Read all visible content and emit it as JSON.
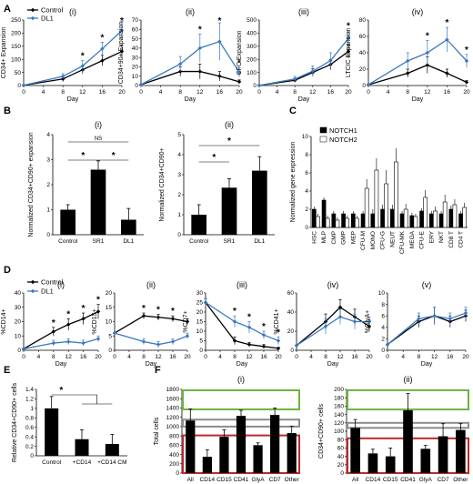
{
  "colors": {
    "control": "#000000",
    "dl1": "#3b78c2",
    "bar_black": "#000000",
    "bar_white": "#ffffff",
    "box_green": "#6db33f",
    "box_gray": "#8c8c8c",
    "box_red": "#c0272d"
  },
  "panels": {
    "A": "A",
    "B": "B",
    "C": "C",
    "D": "D",
    "E": "E",
    "F": "F"
  },
  "legend": {
    "control": "Control",
    "dl1": "DL1",
    "notch1": "NOTCH1",
    "notch2": "NOTCH2"
  },
  "chart_data": [
    {
      "id": "A-i",
      "type": "line",
      "sublabel": "(i)",
      "xlabel": "Day",
      "ylabel": "CD34+ Expansion",
      "x": [
        0,
        8,
        12,
        16,
        20
      ],
      "ylim": [
        0,
        250
      ],
      "yticks": [
        0,
        50,
        100,
        150,
        200,
        250
      ],
      "xticks": [
        0,
        4,
        8,
        12,
        16,
        20
      ],
      "series": [
        {
          "name": "Control",
          "values": [
            1,
            25,
            60,
            95,
            130
          ],
          "err": [
            0,
            10,
            15,
            20,
            25
          ]
        },
        {
          "name": "DL1",
          "values": [
            1,
            35,
            75,
            140,
            210
          ],
          "err": [
            0,
            10,
            20,
            25,
            35
          ]
        }
      ],
      "sig_x": [
        12,
        16,
        20
      ],
      "sig_label": "*"
    },
    {
      "id": "A-ii",
      "type": "line",
      "sublabel": "(ii)",
      "xlabel": "Day",
      "ylabel": "CD34+90+ Expansion",
      "x": [
        0,
        8,
        12,
        16,
        20
      ],
      "ylim": [
        0,
        70
      ],
      "yticks": [
        0,
        10,
        20,
        30,
        40,
        50,
        60,
        70
      ],
      "xticks": [
        0,
        4,
        8,
        12,
        16,
        20
      ],
      "series": [
        {
          "name": "Control",
          "values": [
            1,
            15,
            15,
            10,
            4
          ],
          "err": [
            0,
            5,
            8,
            5,
            2
          ]
        },
        {
          "name": "DL1",
          "values": [
            1,
            23,
            40,
            47,
            14
          ],
          "err": [
            0,
            8,
            15,
            20,
            5
          ]
        }
      ],
      "sig_x": [
        12,
        16,
        20
      ],
      "sig_label": "*"
    },
    {
      "id": "A-iii",
      "type": "line",
      "sublabel": "(iii)",
      "xlabel": "Day",
      "ylabel": "CFC Expansion",
      "x": [
        0,
        8,
        12,
        16,
        20
      ],
      "ylim": [
        0,
        500
      ],
      "yticks": [
        0,
        100,
        200,
        300,
        400,
        500
      ],
      "xticks": [
        0,
        4,
        8,
        12,
        16,
        20
      ],
      "series": [
        {
          "name": "Control",
          "values": [
            1,
            40,
            100,
            160,
            260
          ],
          "err": [
            0,
            15,
            30,
            40,
            50
          ]
        },
        {
          "name": "DL1",
          "values": [
            1,
            50,
            110,
            190,
            360
          ],
          "err": [
            0,
            20,
            40,
            60,
            60
          ]
        }
      ],
      "sig_x": [
        20
      ],
      "sig_label": "*"
    },
    {
      "id": "A-iv",
      "type": "line",
      "sublabel": "(iv)",
      "xlabel": "Day",
      "ylabel": "LTCIC Expansion",
      "x": [
        0,
        8,
        12,
        16,
        20
      ],
      "ylim": [
        0,
        80
      ],
      "yticks": [
        0,
        20,
        40,
        60,
        80
      ],
      "xticks": [
        0,
        4,
        8,
        12,
        16,
        20
      ],
      "series": [
        {
          "name": "Control",
          "values": [
            1,
            15,
            25,
            15,
            4
          ],
          "err": [
            0,
            5,
            10,
            5,
            2
          ]
        },
        {
          "name": "DL1",
          "values": [
            1,
            30,
            40,
            56,
            30
          ],
          "err": [
            0,
            10,
            15,
            15,
            8
          ]
        }
      ],
      "sig_x": [
        12,
        16,
        20
      ],
      "sig_label": "*"
    },
    {
      "id": "B-i",
      "type": "bar",
      "sublabel": "(i)",
      "ylabel": "Normalized CD34+CD90+ expansion",
      "categories": [
        "Control",
        "SR1",
        "DL1"
      ],
      "values": [
        1,
        2.6,
        0.6
      ],
      "err": [
        0.2,
        0.35,
        0.45
      ],
      "ylim": [
        0,
        4
      ],
      "yticks": [
        0,
        1,
        2,
        3,
        4
      ],
      "sig": [
        {
          "from": 0,
          "to": 1,
          "label": "*"
        },
        {
          "from": 1,
          "to": 2,
          "label": "*"
        },
        {
          "from": 0,
          "to": 2,
          "label": "NS"
        }
      ]
    },
    {
      "id": "B-ii",
      "type": "bar",
      "sublabel": "(ii)",
      "ylabel": "Normalized CD34+CD90+",
      "categories": [
        "Control",
        "SR1",
        "DL1"
      ],
      "values": [
        1,
        2.35,
        3.2
      ],
      "err": [
        0.5,
        0.45,
        0.7
      ],
      "ylim": [
        0,
        5
      ],
      "yticks": [
        0,
        1,
        2,
        3,
        4,
        5
      ],
      "sig": [
        {
          "from": 0,
          "to": 1,
          "label": "*"
        },
        {
          "from": 0,
          "to": 2,
          "label": "*"
        }
      ]
    },
    {
      "id": "C",
      "type": "bar",
      "ylabel": "Normalized gene expression",
      "categories": [
        "HSC",
        "MLP",
        "CMP",
        "GMP",
        "MEP",
        "CFU-M",
        "MONO",
        "CFU-G",
        "NEUT",
        "CFU-MK",
        "MEGA",
        "CFU-E",
        "ERY",
        "NKT",
        "CD8 T",
        "CD4 T"
      ],
      "ylim": [
        0,
        10
      ],
      "yticks": [
        0,
        2,
        4,
        6,
        8,
        10
      ],
      "series": [
        {
          "name": "NOTCH1",
          "values": [
            2,
            3,
            1.5,
            1.5,
            1.5,
            1.5,
            1.5,
            2,
            2,
            1.5,
            1.3,
            1.8,
            1.5,
            1.5,
            2,
            1.5
          ],
          "err": [
            0.3,
            0.3,
            0.3,
            0.3,
            0.3,
            0.3,
            0.5,
            0.5,
            0.5,
            0.3,
            0.3,
            0.3,
            0.3,
            0.3,
            0.4,
            0.3
          ]
        },
        {
          "name": "NOTCH2",
          "values": [
            1.2,
            1,
            0.8,
            1,
            1,
            4.3,
            6.3,
            4.8,
            7.2,
            2,
            1.2,
            3.3,
            1.8,
            2.8,
            2.5,
            2.2
          ],
          "err": [
            0.3,
            0.3,
            0.3,
            0.3,
            0.3,
            1,
            1.3,
            1.5,
            1.5,
            0.6,
            0.3,
            0.8,
            0.5,
            0.8,
            0.6,
            0.5
          ]
        }
      ]
    },
    {
      "id": "D-i",
      "type": "line",
      "sublabel": "(i)",
      "xlabel": "Day",
      "ylabel": "%CD14+",
      "x": [
        0,
        8,
        12,
        16,
        20
      ],
      "ylim": [
        0,
        40
      ],
      "yticks": [
        0,
        10,
        20,
        30,
        40
      ],
      "xticks": [
        0,
        4,
        8,
        12,
        16,
        20
      ],
      "series": [
        {
          "name": "Control",
          "values": [
            1,
            13,
            18,
            22,
            27
          ],
          "err": [
            0,
            3,
            4,
            4,
            5
          ]
        },
        {
          "name": "DL1",
          "values": [
            1,
            5,
            6,
            5,
            8
          ],
          "err": [
            0,
            2,
            2,
            2,
            2
          ]
        }
      ],
      "sig_x": [
        8,
        12,
        16,
        20
      ],
      "sig_label": "*"
    },
    {
      "id": "D-ii",
      "type": "line",
      "sublabel": "(ii)",
      "xlabel": "Day",
      "ylabel": "%CD15+",
      "x": [
        0,
        8,
        12,
        16,
        20
      ],
      "ylim": [
        0,
        20
      ],
      "yticks": [
        0,
        5,
        10,
        15,
        20
      ],
      "xticks": [
        0,
        4,
        8,
        12,
        16,
        20
      ],
      "series": [
        {
          "name": "Control",
          "values": [
            6,
            12,
            11.5,
            11,
            10
          ],
          "err": [
            0,
            1,
            1,
            1,
            1
          ]
        },
        {
          "name": "DL1",
          "values": [
            6,
            3,
            2,
            3,
            5
          ],
          "err": [
            0,
            1,
            1,
            1,
            1
          ]
        }
      ],
      "sig_x": [
        8,
        12,
        16
      ],
      "sig_label": "*"
    },
    {
      "id": "D-iii",
      "type": "line",
      "sublabel": "(iii)",
      "xlabel": "Day",
      "ylabel": "%CD7+",
      "x": [
        0,
        8,
        12,
        16,
        20
      ],
      "ylim": [
        0,
        30
      ],
      "yticks": [
        0,
        5,
        10,
        15,
        20,
        25,
        30
      ],
      "xticks": [
        0,
        4,
        8,
        12,
        16,
        20
      ],
      "series": [
        {
          "name": "Control",
          "values": [
            25,
            5,
            3,
            2,
            1
          ],
          "err": [
            2,
            2,
            1,
            1,
            0.5
          ]
        },
        {
          "name": "DL1",
          "values": [
            25,
            15,
            12,
            8,
            5
          ],
          "err": [
            2,
            3,
            3,
            2,
            2
          ]
        }
      ],
      "sig_x": [
        8,
        12,
        16,
        20
      ],
      "sig_label": "*"
    },
    {
      "id": "D-iv",
      "type": "line",
      "sublabel": "(iv)",
      "xlabel": "Day",
      "ylabel": "%CD41+",
      "x": [
        0,
        8,
        12,
        16,
        20
      ],
      "ylim": [
        0,
        60
      ],
      "yticks": [
        0,
        20,
        40,
        60
      ],
      "xticks": [
        0,
        4,
        8,
        12,
        16,
        20
      ],
      "series": [
        {
          "name": "Control",
          "values": [
            5,
            30,
            45,
            35,
            25
          ],
          "err": [
            0,
            8,
            8,
            8,
            5
          ]
        },
        {
          "name": "DL1",
          "values": [
            5,
            25,
            35,
            30,
            30
          ],
          "err": [
            0,
            8,
            8,
            8,
            5
          ]
        }
      ],
      "sig_x": [],
      "sig_label": "*"
    },
    {
      "id": "D-v",
      "type": "line",
      "sublabel": "(v)",
      "xlabel": "Day",
      "ylabel": "%GlyA+",
      "x": [
        0,
        8,
        12,
        16,
        20
      ],
      "ylim": [
        0,
        10
      ],
      "yticks": [
        0,
        2,
        4,
        6,
        8,
        10
      ],
      "xticks": [
        0,
        4,
        8,
        12,
        16,
        20
      ],
      "series": [
        {
          "name": "Control",
          "values": [
            1,
            5,
            6,
            5,
            6
          ],
          "err": [
            0,
            1,
            1.5,
            1,
            1
          ]
        },
        {
          "name": "DL1",
          "values": [
            1,
            5.5,
            6,
            5.5,
            6.5
          ],
          "err": [
            0,
            1,
            1.5,
            1,
            1
          ]
        }
      ],
      "sig_x": [],
      "sig_label": "*"
    },
    {
      "id": "E",
      "type": "bar",
      "ylabel": "Relative CD34+CD90+ cells",
      "categories": [
        "Control",
        "+CD14",
        "+CD14 CM"
      ],
      "values": [
        1,
        0.35,
        0.25
      ],
      "err": [
        0.25,
        0.2,
        0.2
      ],
      "ylim": [
        0,
        1.4
      ],
      "yticks": [
        0,
        0.2,
        0.4,
        0.6,
        0.8,
        1,
        1.2,
        1.4
      ],
      "sig": [
        {
          "label": "*"
        }
      ]
    },
    {
      "id": "F-i",
      "type": "bar",
      "sublabel": "(i)",
      "ylabel": "Total cells",
      "categories": [
        "All",
        "CD14",
        "CD15",
        "CD41",
        "GlyA",
        "CD7",
        "Other"
      ],
      "values": [
        1130,
        350,
        780,
        1230,
        600,
        1250,
        860
      ],
      "err": [
        250,
        150,
        150,
        120,
        50,
        150,
        150
      ],
      "ylim": [
        0,
        1800
      ],
      "yticks": [
        0,
        200,
        400,
        600,
        800,
        1000,
        1200,
        1400,
        1600,
        1800
      ],
      "boxes": [
        {
          "color": "green",
          "range": [
            1370,
            1780
          ]
        },
        {
          "color": "gray",
          "range": [
            1000,
            1150
          ]
        },
        {
          "color": "red",
          "range": [
            0,
            810
          ]
        }
      ]
    },
    {
      "id": "F-ii",
      "type": "bar",
      "sublabel": "(ii)",
      "ylabel": "CD34+CD90+ cells",
      "categories": [
        "All",
        "CD14",
        "CD15",
        "CD41",
        "GlyA",
        "CD7",
        "Other"
      ],
      "values": [
        108,
        47,
        40,
        150,
        58,
        88,
        103
      ],
      "err": [
        20,
        10,
        20,
        40,
        8,
        30,
        15
      ],
      "ylim": [
        0,
        200
      ],
      "yticks": [
        0,
        20,
        40,
        60,
        80,
        100,
        120,
        140,
        160,
        180,
        200
      ],
      "boxes": [
        {
          "color": "green",
          "range": [
            152,
            198
          ]
        },
        {
          "color": "gray",
          "range": [
            108,
            120
          ]
        },
        {
          "color": "red",
          "range": [
            0,
            83
          ]
        }
      ]
    }
  ]
}
